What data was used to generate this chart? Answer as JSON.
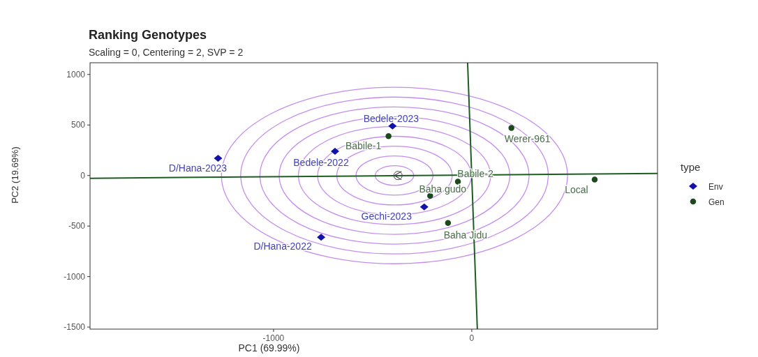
{
  "chart_data": {
    "type": "scatter",
    "title": "Ranking Genotypes",
    "subtitle": "Scaling = 0, Centering = 2, SVP = 2",
    "xlabel": "PC1 (69.99%)",
    "ylabel": "PC2 (19.69%)",
    "legend_title": "type",
    "legend": "right",
    "grid": false,
    "xlim": [
      -1926,
      937
    ],
    "xticks": [
      -1000,
      0
    ],
    "ylim": [
      -1520,
      1116
    ],
    "yticks": [
      -1500,
      -1000,
      -500,
      0,
      500,
      1000
    ],
    "series": [
      {
        "type": "line",
        "color": "#1b5e20",
        "x": [
          -1926,
          937
        ],
        "values": [
          -27,
          21
        ],
        "marker": "none"
      },
      {
        "type": "line",
        "color": "#1b5e20",
        "x": [
          -21,
          28
        ],
        "values": [
          1116,
          -1520
        ],
        "marker": "none"
      },
      {
        "name": "Env",
        "marker": "diamond",
        "color": "#1212a8",
        "x": [
          -400,
          -690,
          -1280,
          -240,
          -760
        ],
        "values": [
          490,
          240,
          170,
          -310,
          -610
        ]
      },
      {
        "name": "Gen",
        "marker": "circle",
        "color": "#1c4a1c",
        "x": [
          -420,
          200,
          -70,
          -210,
          -120,
          620
        ],
        "values": [
          390,
          470,
          -60,
          -200,
          -470,
          -40
        ]
      }
    ],
    "annotations": [
      {
        "text": "Bedele-2023",
        "x": -400,
        "y": 490
      },
      {
        "text": "Bedele-2022",
        "x": -690,
        "y": 240
      },
      {
        "text": "D/Hana-2023",
        "x": -1280,
        "y": 170
      },
      {
        "text": "Gechi-2023",
        "x": -240,
        "y": -310
      },
      {
        "text": "D/Hana-2022",
        "x": -760,
        "y": -610
      },
      {
        "text": "Babile-1",
        "x": -420,
        "y": 390
      },
      {
        "text": "Werer-961",
        "x": 200,
        "y": 470
      },
      {
        "text": "Babile-2",
        "x": -70,
        "y": -60
      },
      {
        "text": "Baha gudo",
        "x": -210,
        "y": -200
      },
      {
        "text": "Baha Jidu",
        "x": -120,
        "y": -470
      },
      {
        "text": "Local",
        "x": 620,
        "y": -40
      }
    ]
  }
}
